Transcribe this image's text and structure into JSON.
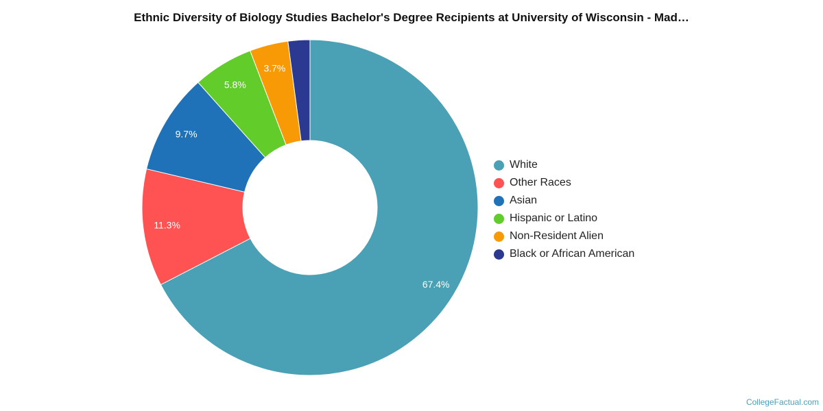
{
  "title": "Ethnic Diversity of Biology Studies Bachelor's Degree Recipients at University of Wisconsin - Mad…",
  "watermark": "CollegeFactual.com",
  "chart_data": {
    "type": "pie",
    "variant": "donut",
    "title": "Ethnic Diversity of Biology Studies Bachelor's Degree Recipients at University of Wisconsin - Mad…",
    "legend_position": "right",
    "slices": [
      {
        "name": "White",
        "value": 67.4,
        "label": "67.4%",
        "color": "#4aa0b4"
      },
      {
        "name": "Other Races",
        "value": 11.3,
        "label": "11.3%",
        "color": "#ff5252"
      },
      {
        "name": "Asian",
        "value": 9.7,
        "label": "9.7%",
        "color": "#1f72b8"
      },
      {
        "name": "Hispanic or Latino",
        "value": 5.8,
        "label": "5.8%",
        "color": "#62cc2a"
      },
      {
        "name": "Non-Resident Alien",
        "value": 3.7,
        "label": "3.7%",
        "color": "#f89a05"
      },
      {
        "name": "Black or African American",
        "value": 2.1,
        "label": "",
        "color": "#2b3990"
      }
    ]
  }
}
